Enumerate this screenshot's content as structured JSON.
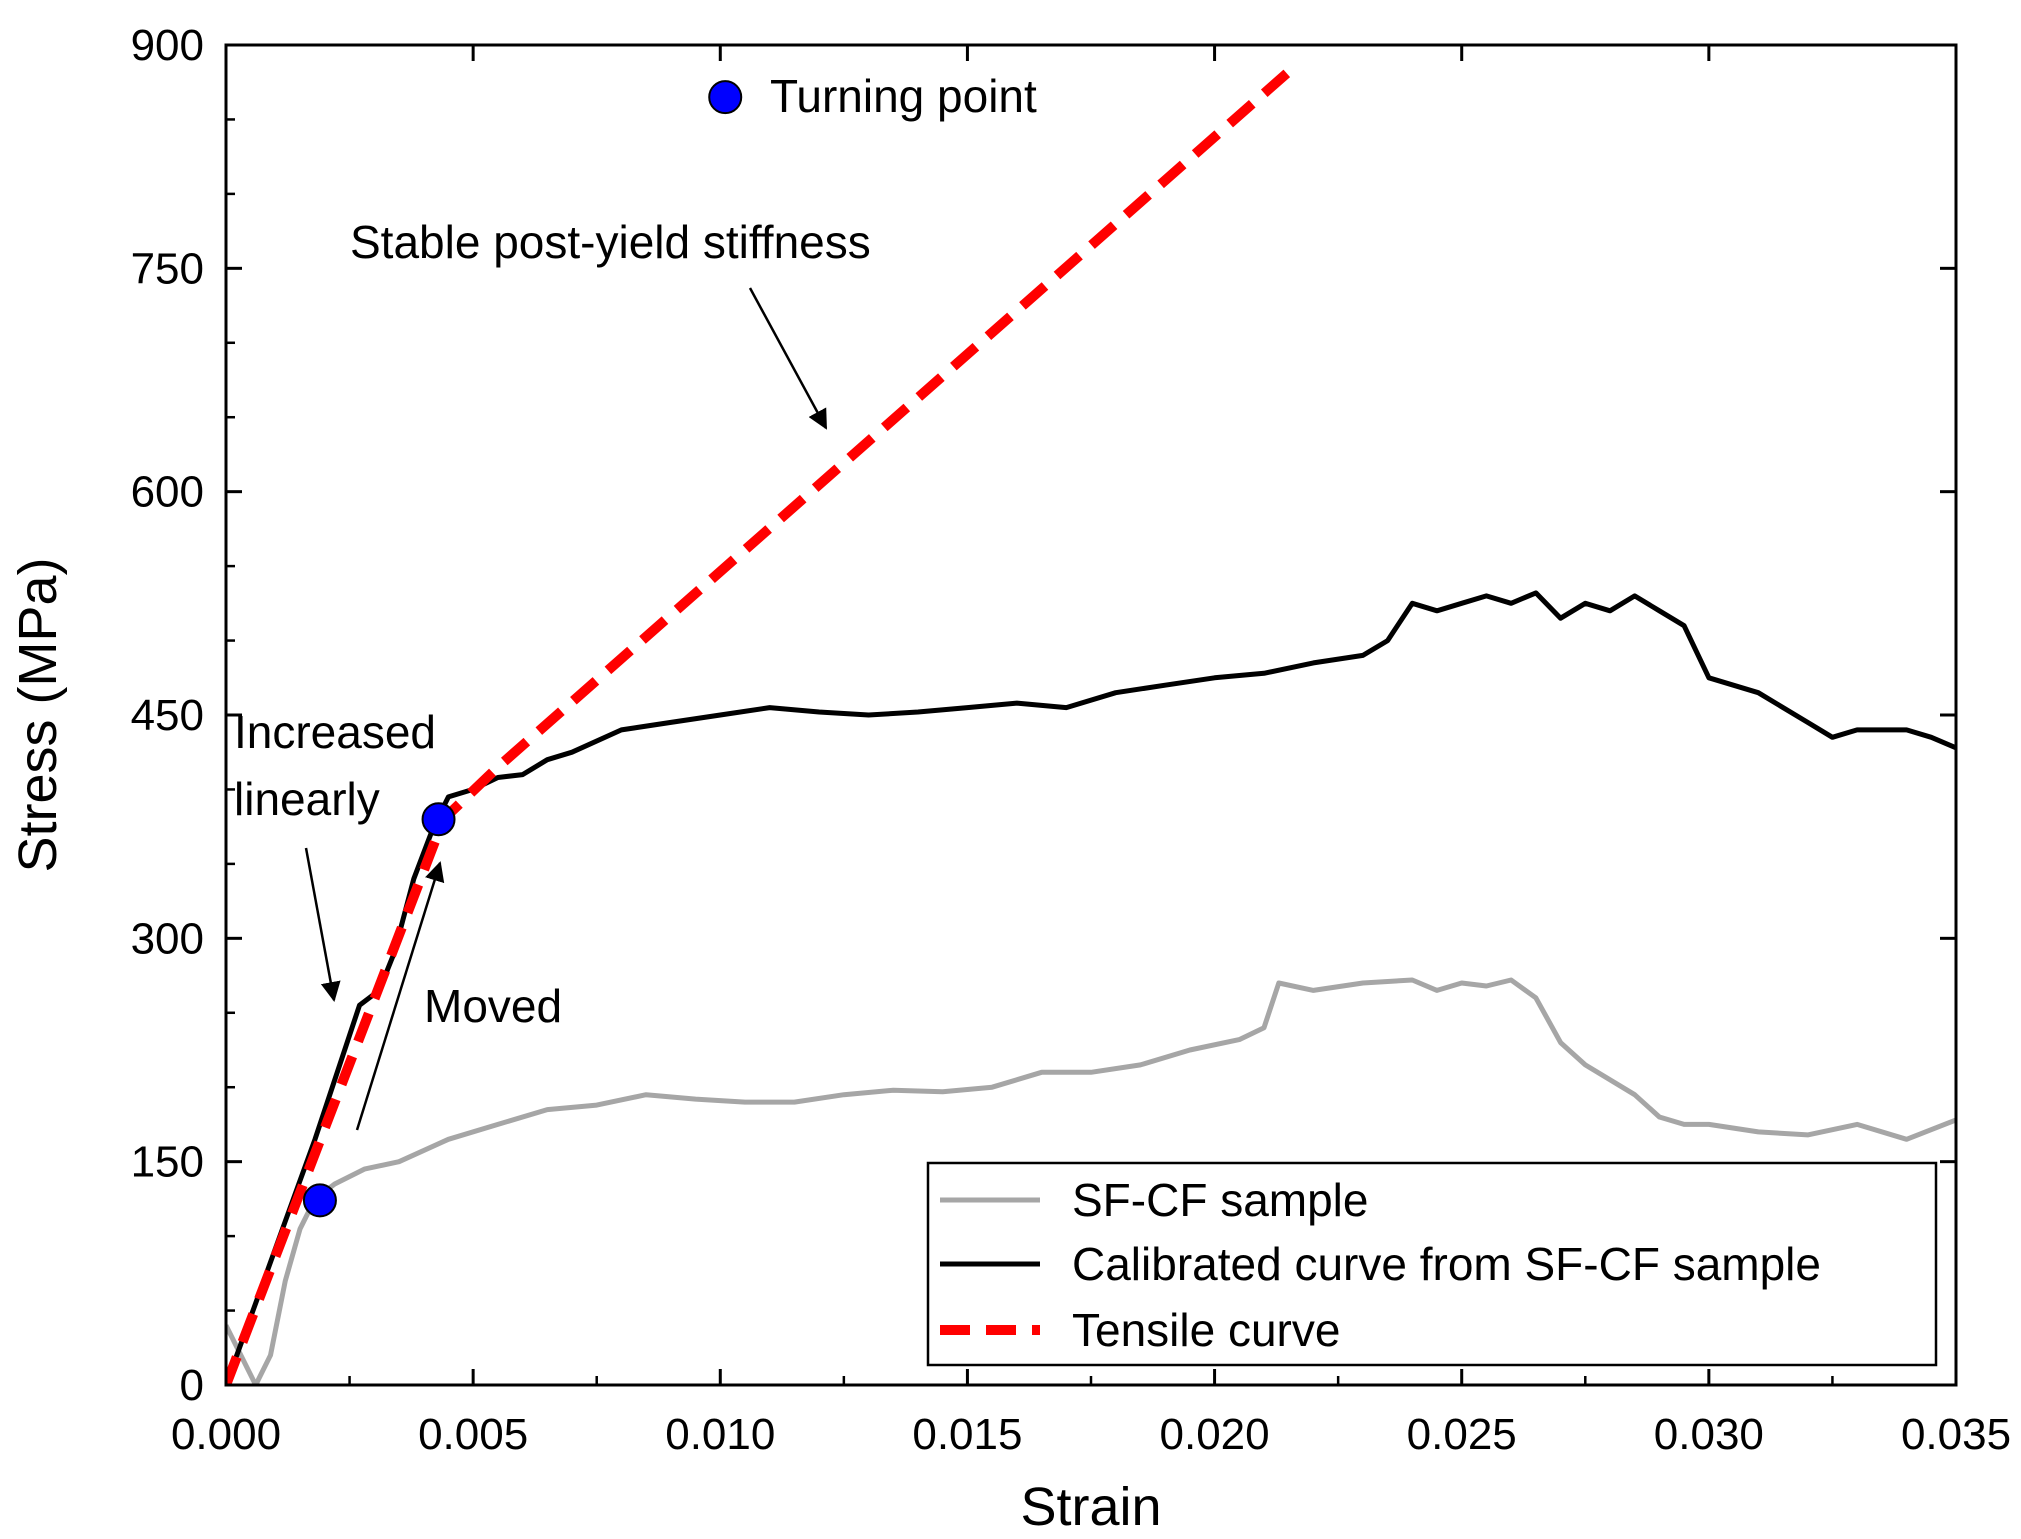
{
  "chart_data": {
    "type": "line",
    "title": "",
    "xlabel": "Strain",
    "ylabel": "Stress (MPa)",
    "xlim": [
      0.0,
      0.035
    ],
    "ylim": [
      0,
      900
    ],
    "xticks": [
      "0.000",
      "0.005",
      "0.010",
      "0.015",
      "0.020",
      "0.025",
      "0.030",
      "0.035"
    ],
    "yticks": [
      "0",
      "150",
      "300",
      "450",
      "600",
      "750",
      "900"
    ],
    "legend_position": "bottom-right",
    "series": [
      {
        "name": "SF-CF sample",
        "color": "#a6a6a6",
        "style": "solid",
        "x": [
          0.0,
          0.0006,
          0.0009,
          0.0012,
          0.0015,
          0.0018,
          0.0022,
          0.0028,
          0.0035,
          0.0045,
          0.0055,
          0.0065,
          0.0075,
          0.0085,
          0.0095,
          0.0105,
          0.0115,
          0.0125,
          0.0135,
          0.0145,
          0.0155,
          0.0165,
          0.0175,
          0.0185,
          0.0195,
          0.0205,
          0.021,
          0.0213,
          0.022,
          0.023,
          0.024,
          0.0245,
          0.025,
          0.0255,
          0.026,
          0.0265,
          0.027,
          0.0275,
          0.0285,
          0.029,
          0.0295,
          0.03,
          0.031,
          0.032,
          0.033,
          0.034,
          0.035
        ],
        "y": [
          40,
          0,
          20,
          70,
          105,
          125,
          135,
          145,
          150,
          165,
          175,
          185,
          188,
          195,
          192,
          190,
          190,
          195,
          198,
          197,
          200,
          210,
          210,
          215,
          225,
          232,
          240,
          270,
          265,
          270,
          272,
          265,
          270,
          268,
          272,
          260,
          230,
          215,
          195,
          180,
          175,
          175,
          170,
          168,
          175,
          165,
          178
        ]
      },
      {
        "name": "Calibrated curve from SF-CF sample",
        "color": "#000000",
        "style": "solid",
        "x": [
          0.0,
          0.0006,
          0.0012,
          0.0018,
          0.0023,
          0.0027,
          0.0031,
          0.0034,
          0.0038,
          0.0042,
          0.0045,
          0.005,
          0.0055,
          0.006,
          0.0065,
          0.007,
          0.008,
          0.009,
          0.01,
          0.011,
          0.012,
          0.013,
          0.014,
          0.015,
          0.016,
          0.017,
          0.018,
          0.019,
          0.02,
          0.021,
          0.022,
          0.023,
          0.0235,
          0.024,
          0.0245,
          0.025,
          0.0255,
          0.026,
          0.0265,
          0.027,
          0.0275,
          0.028,
          0.0285,
          0.029,
          0.0295,
          0.03,
          0.031,
          0.032,
          0.0325,
          0.033,
          0.034,
          0.0345,
          0.035
        ],
        "y": [
          0,
          55,
          110,
          165,
          215,
          255,
          265,
          290,
          340,
          375,
          395,
          400,
          408,
          410,
          420,
          425,
          440,
          445,
          450,
          455,
          452,
          450,
          452,
          455,
          458,
          455,
          465,
          470,
          475,
          478,
          485,
          490,
          500,
          525,
          520,
          525,
          530,
          525,
          532,
          515,
          525,
          520,
          530,
          520,
          510,
          475,
          465,
          445,
          435,
          440,
          440,
          435,
          428
        ]
      },
      {
        "name": "Tensile curve",
        "color": "#ff0000",
        "style": "dashed",
        "x": [
          0.0,
          0.0044,
          0.0055,
          0.0216
        ],
        "y": [
          0,
          380,
          415,
          885
        ]
      }
    ],
    "markers": [
      {
        "x": 0.0019,
        "y": 124,
        "color": "#0000ff"
      },
      {
        "x": 0.0043,
        "y": 380,
        "color": "#0000ff"
      },
      {
        "x": 0.0101,
        "y": 865,
        "color": "#0000ff"
      }
    ],
    "annotations": [
      {
        "text": "Turning point"
      },
      {
        "text": "Stable post-yield stiffness"
      },
      {
        "text": "Increased"
      },
      {
        "text": "linearly"
      },
      {
        "text": "Moved"
      }
    ]
  }
}
